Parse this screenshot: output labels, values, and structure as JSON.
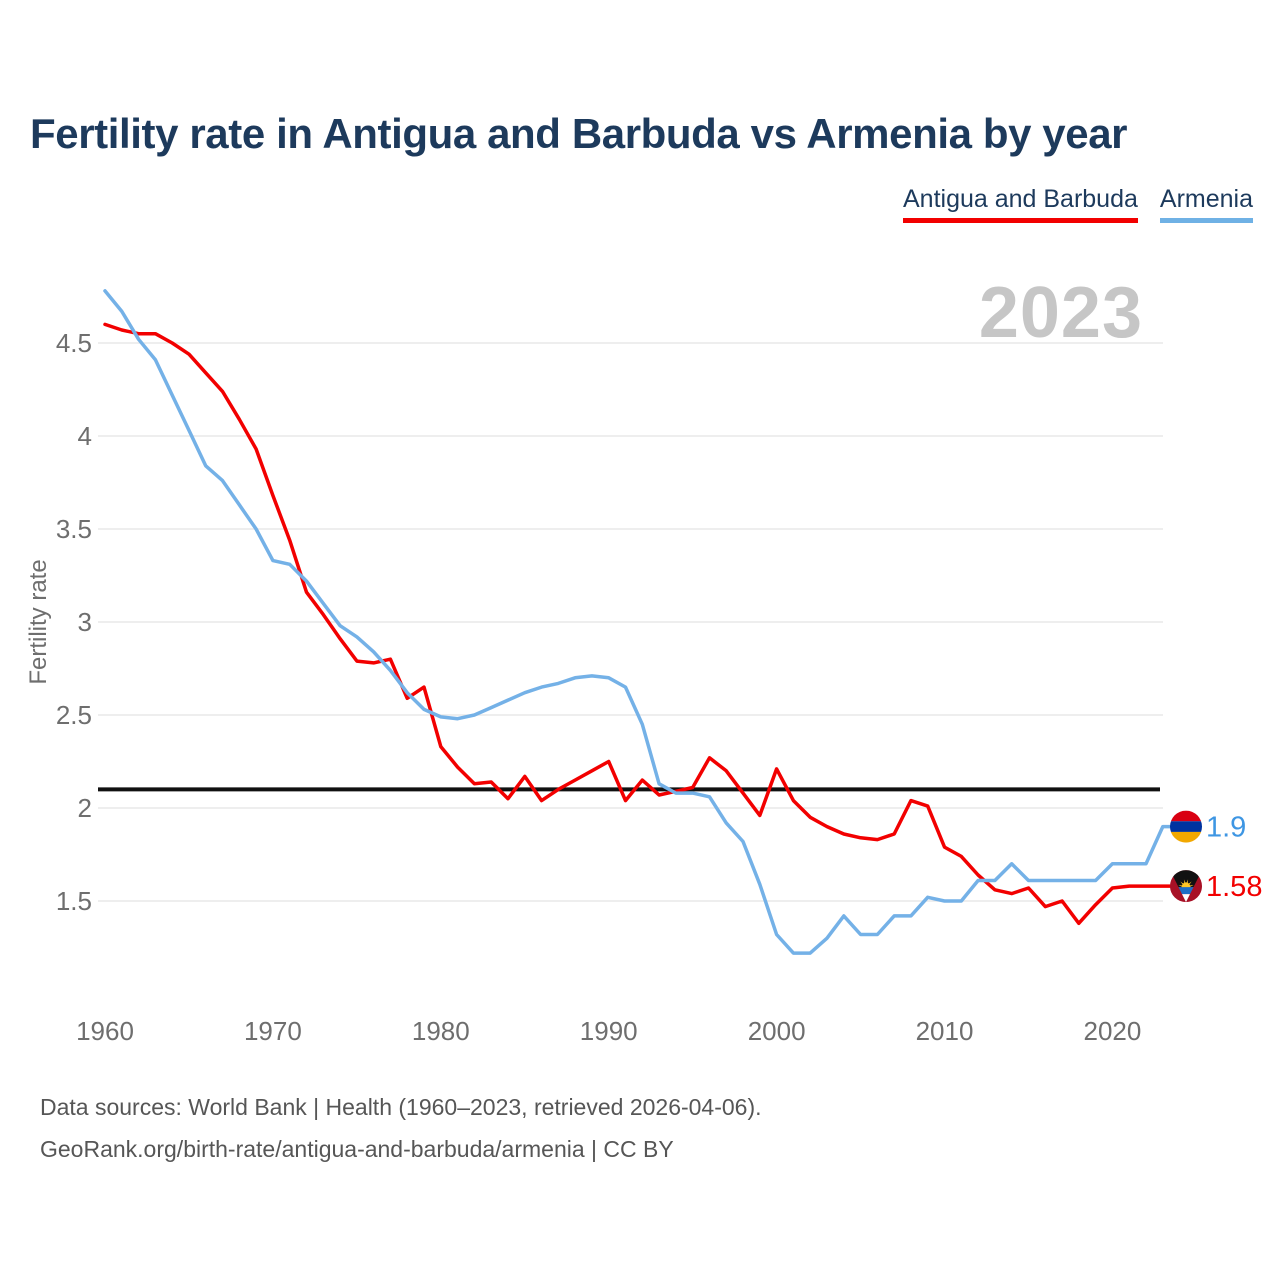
{
  "title": "Fertility rate in Antigua and Barbuda vs Armenia by year",
  "legend": [
    {
      "label": "Antigua and Barbuda",
      "color": "#f20000"
    },
    {
      "label": "Armenia",
      "color": "#6fb1e5"
    }
  ],
  "watermark": "2023",
  "footer": {
    "line1": "Data sources: World Bank | Health (1960–2023, retrieved 2026-04-06).",
    "line2": "GeoRank.org/birth-rate/antigua-and-barbuda/armenia | CC BY"
  },
  "colors": {
    "title_text": "#1d3a5c",
    "axis_text": "#6e6e6e",
    "gridline": "#e8e8e8",
    "watermark": "#c6c6c6",
    "reference_line": "#111111",
    "antigua_line": "#f20000",
    "armenia_line": "#74b1e7",
    "armenia_label": "#3e96e3"
  },
  "chart_data": {
    "type": "line",
    "title": "Fertility rate in Antigua and Barbuda vs Armenia by year",
    "xlabel": "",
    "ylabel": "Fertility rate",
    "x_start_year": 1960,
    "x_end_year": 2023,
    "x_ticks": [
      1960,
      1970,
      1980,
      1990,
      2000,
      2010,
      2020
    ],
    "y_ticks": [
      4.5,
      4,
      3.5,
      3,
      2.5,
      2,
      1.5
    ],
    "ylim": [
      1.1,
      4.9
    ],
    "grid": true,
    "legend_position": "top-right",
    "reference_line": {
      "value": 2.1
    },
    "series": [
      {
        "name": "Antigua and Barbuda",
        "color": "#f20000",
        "end_label": "1.58",
        "end_label_color": "#f20000",
        "flag_icon": "antigua-and-barbuda-flag-icon",
        "values": [
          4.6,
          4.57,
          4.55,
          4.55,
          4.5,
          4.44,
          4.34,
          4.24,
          4.09,
          3.93,
          3.68,
          3.44,
          3.16,
          3.04,
          2.91,
          2.79,
          2.78,
          2.8,
          2.59,
          2.65,
          2.33,
          2.22,
          2.13,
          2.14,
          2.05,
          2.17,
          2.04,
          2.1,
          2.15,
          2.2,
          2.25,
          2.04,
          2.15,
          2.07,
          2.09,
          2.11,
          2.27,
          2.2,
          2.08,
          1.96,
          2.21,
          2.04,
          1.95,
          1.9,
          1.86,
          1.84,
          1.83,
          1.86,
          2.04,
          2.01,
          1.79,
          1.74,
          1.64,
          1.56,
          1.54,
          1.57,
          1.47,
          1.5,
          1.38,
          1.48,
          1.57,
          1.58,
          1.58,
          1.58
        ]
      },
      {
        "name": "Armenia",
        "color": "#74b1e7",
        "end_label": "1.9",
        "end_label_color": "#3e96e3",
        "flag_icon": "armenia-flag-icon",
        "values": [
          4.78,
          4.67,
          4.52,
          4.41,
          4.22,
          4.03,
          3.84,
          3.76,
          3.63,
          3.5,
          3.33,
          3.31,
          3.22,
          3.1,
          2.98,
          2.92,
          2.84,
          2.74,
          2.62,
          2.53,
          2.49,
          2.48,
          2.5,
          2.54,
          2.58,
          2.62,
          2.65,
          2.67,
          2.7,
          2.71,
          2.7,
          2.65,
          2.45,
          2.13,
          2.08,
          2.08,
          2.06,
          1.92,
          1.82,
          1.59,
          1.32,
          1.22,
          1.22,
          1.3,
          1.42,
          1.32,
          1.32,
          1.42,
          1.42,
          1.52,
          1.5,
          1.5,
          1.61,
          1.61,
          1.7,
          1.61,
          1.61,
          1.61,
          1.61,
          1.61,
          1.7,
          1.7,
          1.7,
          1.9
        ]
      }
    ]
  }
}
